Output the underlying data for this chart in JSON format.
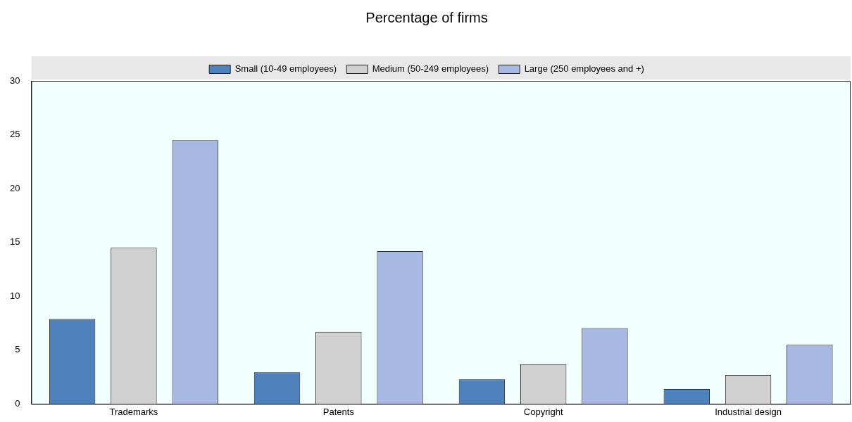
{
  "chart_data": {
    "type": "bar",
    "title": "Percentage of firms",
    "categories": [
      "Trademarks",
      "Patents",
      "Copyright",
      "Industrial design"
    ],
    "series": [
      {
        "name": "Small (10-49 employees)",
        "color": "#4f81bd",
        "values": [
          7.9,
          2.95,
          2.3,
          1.4
        ]
      },
      {
        "name": "Medium (50-249 employees)",
        "color": "#d0d0d0",
        "values": [
          14.5,
          6.7,
          3.7,
          2.7
        ]
      },
      {
        "name": "Large (250 employees and +)",
        "color": "#a7b8e3",
        "values": [
          24.5,
          14.2,
          7.05,
          5.5
        ]
      }
    ],
    "ylim": [
      0,
      30
    ],
    "yticks": [
      0,
      5,
      10,
      15,
      20,
      25,
      30
    ],
    "grid": false,
    "legend": "top"
  }
}
